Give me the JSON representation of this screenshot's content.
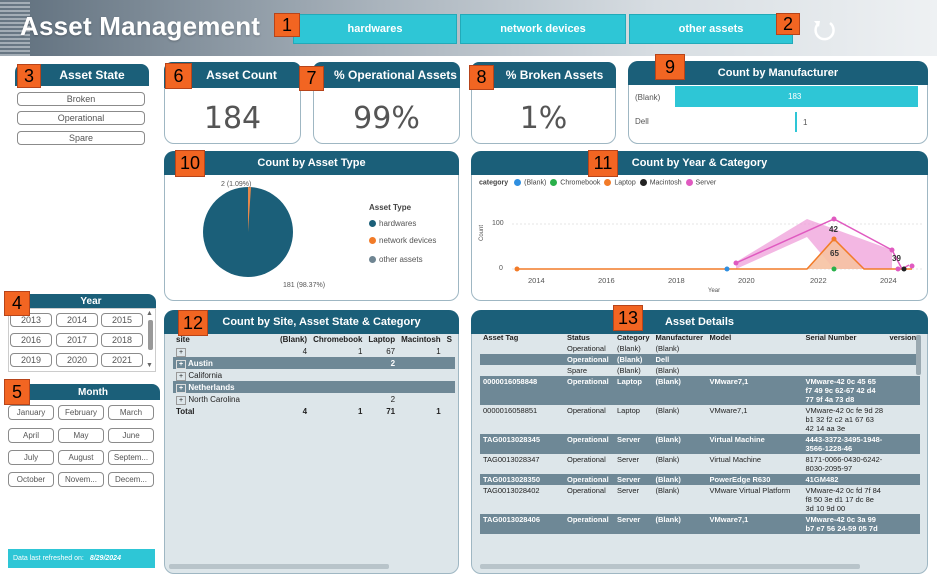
{
  "header": {
    "title": "Asset Management",
    "nav": [
      "hardwares",
      "network devices",
      "other assets"
    ]
  },
  "badges": [
    "1",
    "2",
    "3",
    "4",
    "5",
    "6",
    "7",
    "8",
    "9",
    "10",
    "11",
    "12",
    "13"
  ],
  "asset_state": {
    "title": "Asset State",
    "options": [
      "Broken",
      "Operational",
      "Spare"
    ]
  },
  "kpis": {
    "count": {
      "title": "Asset Count",
      "value": "184"
    },
    "operational": {
      "title": "% Operational Assets",
      "value": "99%"
    },
    "broken": {
      "title": "% Broken Assets",
      "value": "1%"
    }
  },
  "manufacturer": {
    "title": "Count by Manufacturer",
    "rows": [
      {
        "label": "(Blank)",
        "value": 183,
        "text": "183"
      },
      {
        "label": "Dell",
        "value": 1,
        "text": "1"
      }
    ]
  },
  "asset_type": {
    "title": "Count by Asset Type",
    "legend_title": "Asset Type",
    "legend": [
      "hardwares",
      "network devices",
      "other assets"
    ],
    "label_small": "2 (1.09%)",
    "label_large": "181 (98.37%)"
  },
  "year_category": {
    "title": "Count by Year & Category",
    "legend_title": "category",
    "legend": [
      "(Blank)",
      "Chromebook",
      "Laptop",
      "Macintosh",
      "Server"
    ],
    "y_label": "Count",
    "x_label": "Year",
    "y_ticks": [
      "100",
      "0"
    ],
    "x_ticks": [
      "2014",
      "2016",
      "2018",
      "2020",
      "2022",
      "2024"
    ],
    "labels": [
      "42",
      "65",
      "39"
    ]
  },
  "year": {
    "title": "Year",
    "options": [
      "2013",
      "2014",
      "2015",
      "2016",
      "2017",
      "2018",
      "2019",
      "2020",
      "2021"
    ]
  },
  "month": {
    "title": "Month",
    "options": [
      "January",
      "February",
      "March",
      "April",
      "May",
      "June",
      "July",
      "August",
      "Septem...",
      "October",
      "Novem...",
      "Decem..."
    ]
  },
  "refresh": {
    "label": "Data last refreshed on:",
    "date": "8/29/2024"
  },
  "matrix": {
    "title": "Count by Site, Asset State & Category",
    "headers": [
      "site",
      "(Blank)",
      "Chromebook",
      "Laptop",
      "Macintosh",
      "S"
    ],
    "rows": [
      {
        "toggle": "+",
        "site": "",
        "c1": "4",
        "c2": "1",
        "c3": "67",
        "c4": "1",
        "dark": false
      },
      {
        "toggle": "+",
        "site": "Austin",
        "c1": "",
        "c2": "",
        "c3": "2",
        "c4": "",
        "dark": true
      },
      {
        "toggle": "+",
        "site": "California",
        "c1": "",
        "c2": "",
        "c3": "",
        "c4": "",
        "dark": false
      },
      {
        "toggle": "+",
        "site": "Netherlands",
        "c1": "",
        "c2": "",
        "c3": "",
        "c4": "",
        "dark": true
      },
      {
        "toggle": "+",
        "site": "North Carolina",
        "c1": "",
        "c2": "",
        "c3": "2",
        "c4": "",
        "dark": false
      },
      {
        "toggle": "",
        "site": "Total",
        "c1": "4",
        "c2": "1",
        "c3": "71",
        "c4": "1",
        "dark": false
      }
    ]
  },
  "details": {
    "title": "Asset Details",
    "headers": [
      "Asset Tag",
      "Status",
      "Category",
      "Manufacturer",
      "Model",
      "Serial Number",
      "version"
    ],
    "rows": [
      {
        "tag": "",
        "status": "Operational",
        "cat": "(Blank)",
        "man": "(Blank)",
        "model": "",
        "serial": "",
        "dark": false
      },
      {
        "tag": "",
        "status": "Operational",
        "cat": "(Blank)",
        "man": "Dell",
        "model": "",
        "serial": "",
        "dark": true
      },
      {
        "tag": "",
        "status": "Spare",
        "cat": "(Blank)",
        "man": "(Blank)",
        "model": "",
        "serial": "",
        "dark": false
      },
      {
        "tag": "0000016058848",
        "status": "Operational",
        "cat": "Laptop",
        "man": "(Blank)",
        "model": "VMware7,1",
        "serial": "VMware-42 0c 45 65 f7 49 9c 62-67 42 d4 77 9f 4a 73 d8",
        "dark": true
      },
      {
        "tag": "0000016058851",
        "status": "Operational",
        "cat": "Laptop",
        "man": "(Blank)",
        "model": "VMware7,1",
        "serial": "VMware-42 0c fe 9d 28 b1 32 f2 c2 a1 67 63 42 14 aa 3e",
        "dark": false
      },
      {
        "tag": "TAG0013028345",
        "status": "Operational",
        "cat": "Server",
        "man": "(Blank)",
        "model": "Virtual Machine",
        "serial": "4443-3372-3495-1948-3566-1228-46",
        "dark": true
      },
      {
        "tag": "TAG0013028347",
        "status": "Operational",
        "cat": "Server",
        "man": "(Blank)",
        "model": "Virtual Machine",
        "serial": "8171-0066-0430-6242-8030-2095-97",
        "dark": false
      },
      {
        "tag": "TAG0013028350",
        "status": "Operational",
        "cat": "Server",
        "man": "(Blank)",
        "model": "PowerEdge R630",
        "serial": "41GM482",
        "dark": true
      },
      {
        "tag": "TAG0013028402",
        "status": "Operational",
        "cat": "Server",
        "man": "(Blank)",
        "model": "VMware Virtual Platform",
        "serial": "VMware-42 0c fd 7f 84 f8 50 3e d1 17 dc 8e 3d 10 9d 00",
        "dark": false
      },
      {
        "tag": "TAG0013028406",
        "status": "Operational",
        "cat": "Server",
        "man": "(Blank)",
        "model": "VMware7,1",
        "serial": "VMware-42 0c 3a 99 b7 e7 56 24-59 05 7d",
        "dark": true
      }
    ]
  },
  "colors": {
    "accent": "#2ec6d6",
    "header_bar": "#1b5f79",
    "badge": "#f26522",
    "pie_main": "#1b5f79",
    "pie_small": "#e8894b"
  }
}
